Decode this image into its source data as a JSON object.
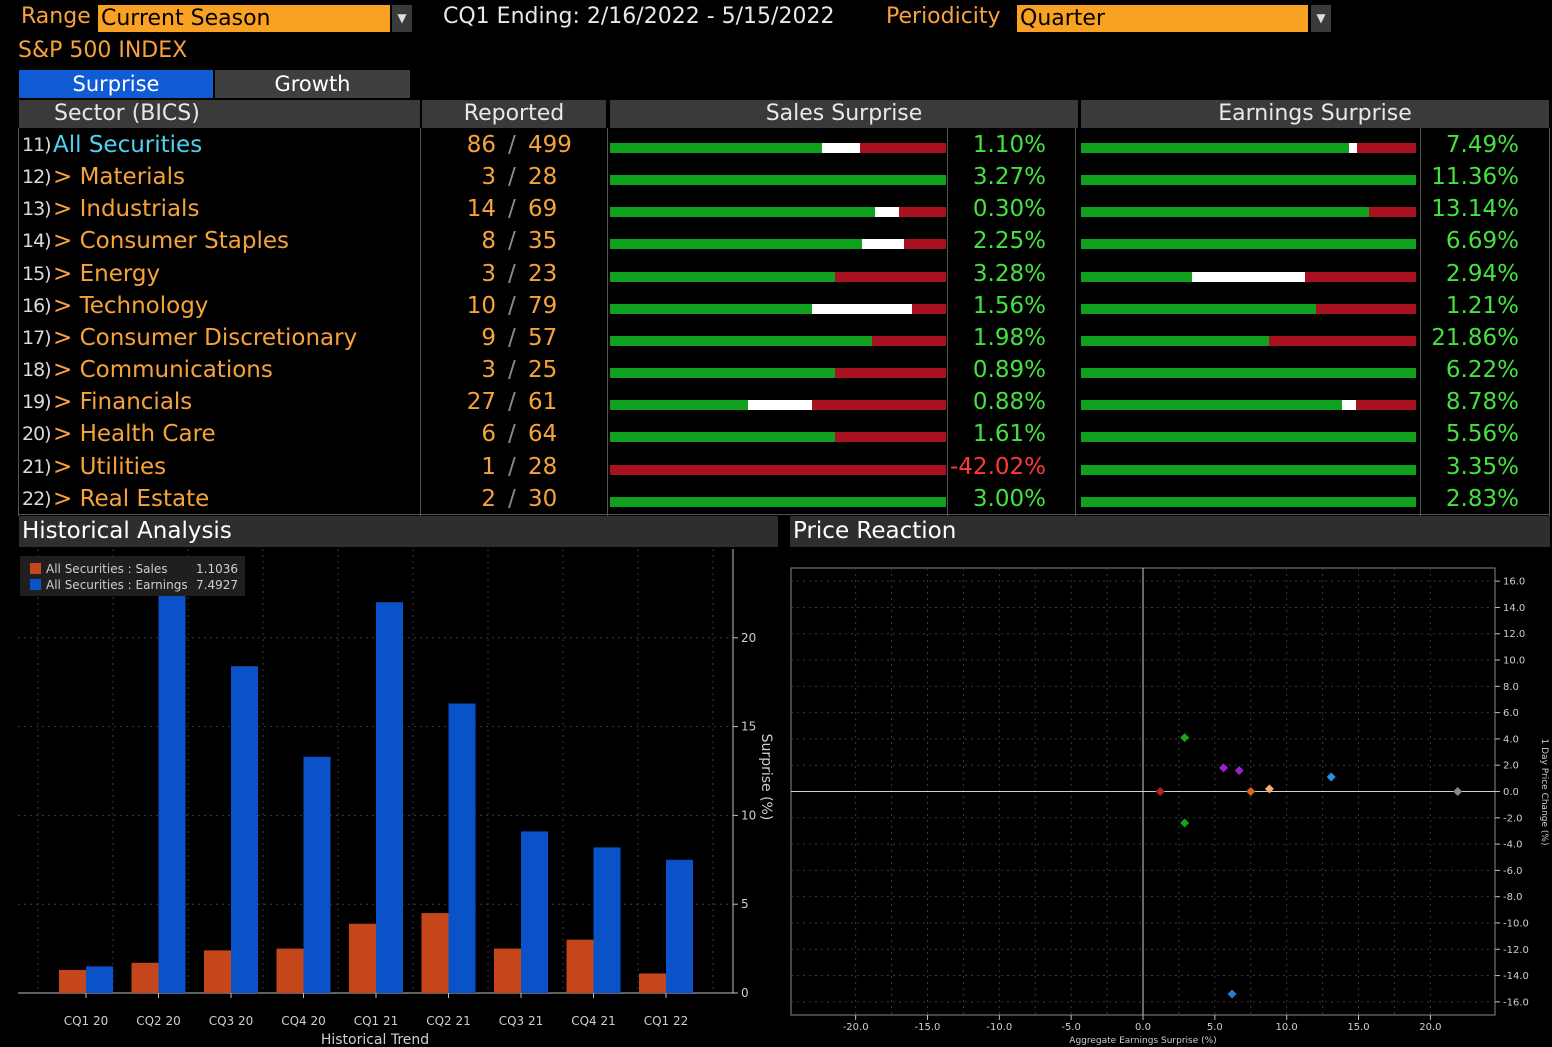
{
  "header": {
    "range_label": "Range",
    "range_value": "Current Season",
    "period_text": "CQ1 Ending: 2/16/2022 - 5/15/2022",
    "periodicity_label": "Periodicity",
    "periodicity_value": "Quarter",
    "index_name": "S&P 500 INDEX"
  },
  "tabs": [
    {
      "label": "Surprise",
      "active": true
    },
    {
      "label": "Growth",
      "active": false
    }
  ],
  "table": {
    "col_sector": "Sector (BICS)",
    "col_reported": "Reported",
    "col_sales": "Sales Surprise",
    "col_earnings": "Earnings Surprise",
    "separator": "/",
    "rows": [
      {
        "num": "11)",
        "name": "All Securities",
        "reported": "86",
        "total": "499",
        "sales": "1.10%",
        "earnings": "7.49%"
      },
      {
        "num": "12)",
        "name": "> Materials",
        "reported": "3",
        "total": "28",
        "sales": "3.27%",
        "earnings": "11.36%"
      },
      {
        "num": "13)",
        "name": "> Industrials",
        "reported": "14",
        "total": "69",
        "sales": "0.30%",
        "earnings": "13.14%"
      },
      {
        "num": "14)",
        "name": "> Consumer Staples",
        "reported": "8",
        "total": "35",
        "sales": "2.25%",
        "earnings": "6.69%"
      },
      {
        "num": "15)",
        "name": "> Energy",
        "reported": "3",
        "total": "23",
        "sales": "3.28%",
        "earnings": "2.94%"
      },
      {
        "num": "16)",
        "name": "> Technology",
        "reported": "10",
        "total": "79",
        "sales": "1.56%",
        "earnings": "1.21%"
      },
      {
        "num": "17)",
        "name": "> Consumer Discretionary",
        "reported": "9",
        "total": "57",
        "sales": "1.98%",
        "earnings": "21.86%"
      },
      {
        "num": "18)",
        "name": "> Communications",
        "reported": "3",
        "total": "25",
        "sales": "0.89%",
        "earnings": "6.22%"
      },
      {
        "num": "19)",
        "name": "> Financials",
        "reported": "27",
        "total": "61",
        "sales": "0.88%",
        "earnings": "8.78%"
      },
      {
        "num": "20)",
        "name": "> Health Care",
        "reported": "6",
        "total": "64",
        "sales": "1.61%",
        "earnings": "5.56%"
      },
      {
        "num": "21)",
        "name": "> Utilities",
        "reported": "1",
        "total": "28",
        "sales": "-42.02%",
        "earnings": "3.35%"
      },
      {
        "num": "22)",
        "name": "> Real Estate",
        "reported": "2",
        "total": "30",
        "sales": "3.00%",
        "earnings": "2.83%"
      }
    ],
    "sales_bars": [
      {
        "beat": 0.63,
        "inline": 0.115,
        "miss": 0.255
      },
      {
        "beat": 1.0,
        "inline": 0.0,
        "miss": 0.0
      },
      {
        "beat": 0.79,
        "inline": 0.07,
        "miss": 0.14
      },
      {
        "beat": 0.75,
        "inline": 0.125,
        "miss": 0.125
      },
      {
        "beat": 0.67,
        "inline": 0.0,
        "miss": 0.33
      },
      {
        "beat": 0.6,
        "inline": 0.3,
        "miss": 0.1
      },
      {
        "beat": 0.78,
        "inline": 0.0,
        "miss": 0.22
      },
      {
        "beat": 0.67,
        "inline": 0.0,
        "miss": 0.33
      },
      {
        "beat": 0.41,
        "inline": 0.19,
        "miss": 0.4
      },
      {
        "beat": 0.67,
        "inline": 0.0,
        "miss": 0.33
      },
      {
        "beat": 0.0,
        "inline": 0.0,
        "miss": 1.0
      },
      {
        "beat": 1.0,
        "inline": 0.0,
        "miss": 0.0
      }
    ],
    "earnings_bars": [
      {
        "beat": 0.8,
        "inline": 0.025,
        "miss": 0.175
      },
      {
        "beat": 1.0,
        "inline": 0.0,
        "miss": 0.0
      },
      {
        "beat": 0.86,
        "inline": 0.0,
        "miss": 0.14
      },
      {
        "beat": 1.0,
        "inline": 0.0,
        "miss": 0.0
      },
      {
        "beat": 0.33,
        "inline": 0.34,
        "miss": 0.33
      },
      {
        "beat": 0.7,
        "inline": 0.0,
        "miss": 0.3
      },
      {
        "beat": 0.56,
        "inline": 0.0,
        "miss": 0.44
      },
      {
        "beat": 1.0,
        "inline": 0.0,
        "miss": 0.0
      },
      {
        "beat": 0.78,
        "inline": 0.04,
        "miss": 0.18
      },
      {
        "beat": 1.0,
        "inline": 0.0,
        "miss": 0.0
      },
      {
        "beat": 1.0,
        "inline": 0.0,
        "miss": 0.0
      },
      {
        "beat": 1.0,
        "inline": 0.0,
        "miss": 0.0
      }
    ]
  },
  "panels": {
    "historical_title": "Historical Analysis",
    "price_title": "Price Reaction"
  },
  "colors": {
    "sales": "#c5461b",
    "earnings": "#0a52c8",
    "beat": "#0fa01e",
    "inline": "#ffffff",
    "miss": "#a8111e"
  },
  "chart_data": [
    {
      "type": "bar",
      "xlabel": "Historical Trend",
      "ylabel": "Surprise (%)",
      "categories": [
        "CQ1 20",
        "CQ2 20",
        "CQ3 20",
        "CQ4 20",
        "CQ1 21",
        "CQ2 21",
        "CQ3 21",
        "CQ4 21",
        "CQ1 22"
      ],
      "series": [
        {
          "name": "All Securities : Sales",
          "legend_value": "1.1036",
          "values": [
            1.3,
            1.7,
            2.4,
            2.5,
            3.9,
            4.5,
            2.5,
            3.0,
            1.1
          ]
        },
        {
          "name": "All Securities : Earnings",
          "legend_value": "7.4927",
          "values": [
            1.5,
            23.0,
            18.4,
            13.3,
            22.0,
            16.3,
            9.1,
            8.2,
            7.5
          ]
        }
      ],
      "ylim": [
        0,
        25
      ],
      "yticks": [
        "0",
        "5",
        "10",
        "15",
        "20"
      ],
      "grid": true,
      "legend": "top-left"
    },
    {
      "type": "scatter",
      "xlabel": "Aggregate Earnings Surprise (%)",
      "ylabel": "1 Day Price Change (%)",
      "xlim": [
        -24.5,
        24.5
      ],
      "ylim": [
        -17.0,
        17.0
      ],
      "xticks": [
        "-20.0",
        "-15.0",
        "-10.0",
        "-5.0",
        "0.0",
        "5.0",
        "10.0",
        "15.0",
        "20.0"
      ],
      "yticks": [
        "16.0",
        "14.0",
        "12.0",
        "10.0",
        "8.0",
        "6.0",
        "4.0",
        "2.0",
        "0.0",
        "-2.0",
        "-4.0",
        "-6.0",
        "-8.0",
        "-10.0",
        "-12.0",
        "-14.0",
        "-16.0"
      ],
      "points": [
        {
          "x": 1.2,
          "y": 0.0,
          "color": "#b52222"
        },
        {
          "x": 2.9,
          "y": 4.1,
          "color": "#17a317"
        },
        {
          "x": 2.9,
          "y": -2.4,
          "color": "#17a317"
        },
        {
          "x": 5.6,
          "y": 1.8,
          "color": "#a020c8"
        },
        {
          "x": 6.7,
          "y": 1.6,
          "color": "#a020c8"
        },
        {
          "x": 6.2,
          "y": -15.4,
          "color": "#2a7ae0"
        },
        {
          "x": 7.5,
          "y": 0.0,
          "color": "#e0641a"
        },
        {
          "x": 8.8,
          "y": 0.2,
          "color": "#f0b070"
        },
        {
          "x": 13.1,
          "y": 1.1,
          "color": "#2a90e0"
        },
        {
          "x": 21.9,
          "y": 0.0,
          "color": "#888888"
        }
      ],
      "grid": true
    }
  ]
}
